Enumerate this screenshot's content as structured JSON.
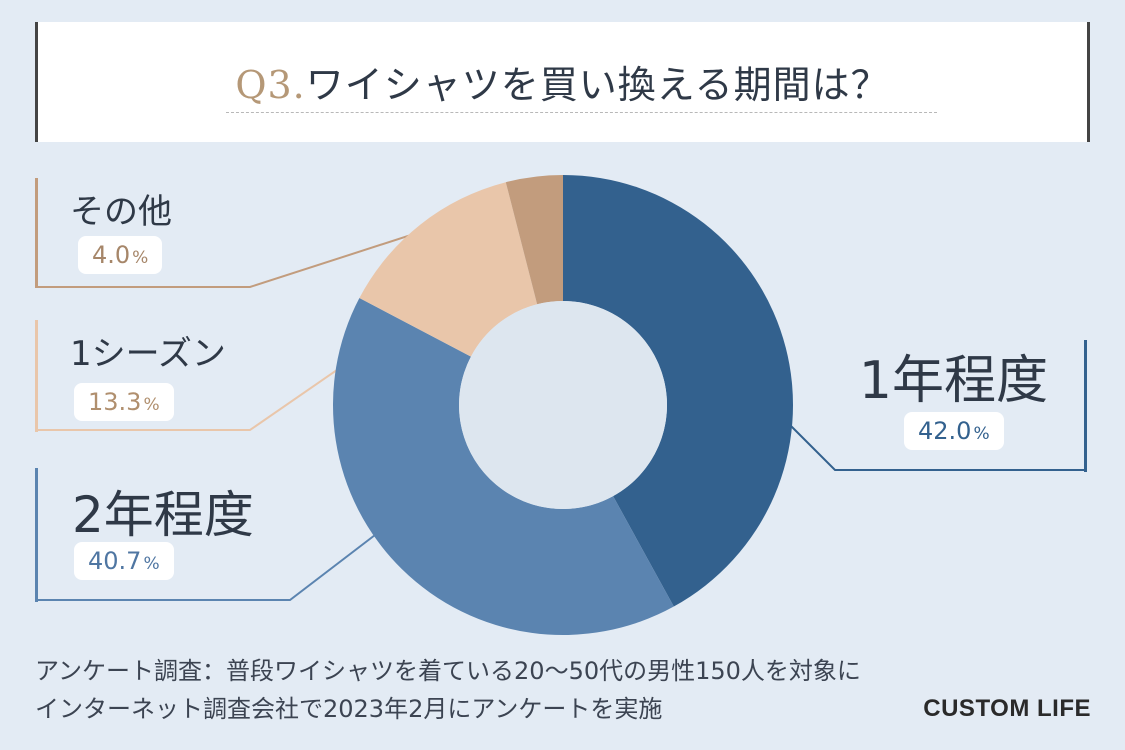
{
  "title": {
    "prefix": "Q3.",
    "text": "ワイシャツを買い換える期間は？"
  },
  "chart_data": {
    "type": "pie",
    "title": "Q3.ワイシャツを買い換える期間は？",
    "slices": [
      {
        "label": "1年程度",
        "value": 42.0,
        "display": "42.0",
        "color": "#33618e",
        "text_color": "#33618e"
      },
      {
        "label": "2年程度",
        "value": 40.7,
        "display": "40.7",
        "color": "#5b84b0",
        "text_color": "#4f76a2"
      },
      {
        "label": "1シーズン",
        "value": 13.3,
        "display": "13.3",
        "color": "#e9c6aa",
        "text_color": "#b08f6e"
      },
      {
        "label": "その他",
        "value": 4.0,
        "display": "4.0",
        "color": "#c29c7d",
        "text_color": "#a68669"
      }
    ],
    "unit": "%",
    "donut": true
  },
  "footnote": {
    "line1": "アンケート調査：普段ワイシャツを着ている20～50代の男性150人を対象に",
    "line2": "インターネット調査会社で2023年2月にアンケートを実施"
  },
  "brand": "CUSTOM LIFE"
}
